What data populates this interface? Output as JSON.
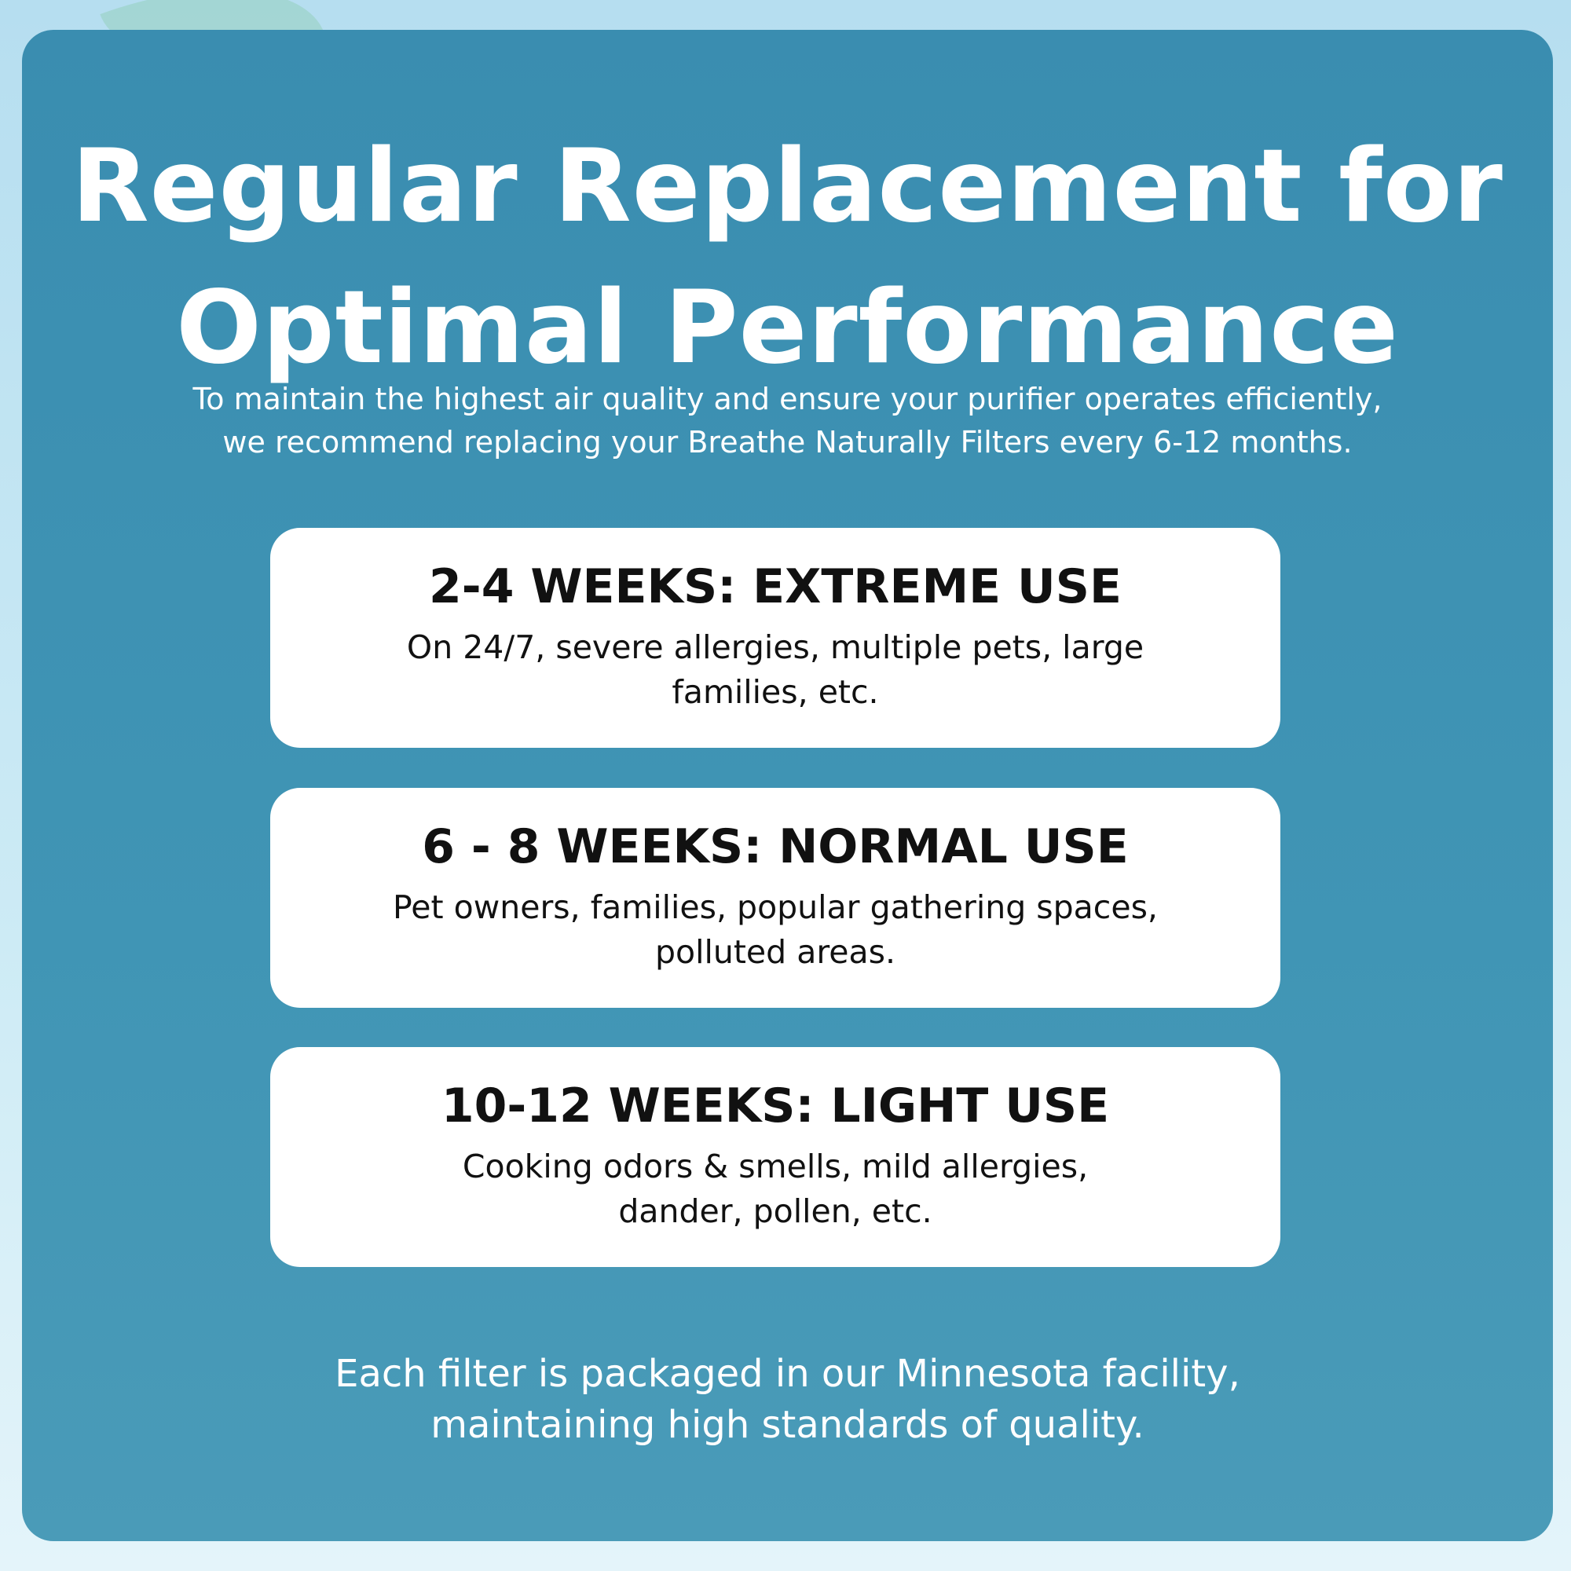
{
  "header": {
    "title": [
      "Regular Replacement for",
      "Optimal Performance"
    ],
    "subtitle": [
      "To maintain the highest air quality and ensure your purifier operates efficiently,",
      "we recommend replacing your Breathe Naturally Filters every 6-12 months."
    ]
  },
  "cards": [
    {
      "heading": "2-4 WEEKS: EXTREME USE",
      "lines": [
        "On 24/7, severe allergies, multiple pets, large",
        "families, etc."
      ]
    },
    {
      "heading": "6 - 8 WEEKS: NORMAL USE",
      "lines": [
        "Pet owners, families, popular gathering spaces,",
        "polluted areas."
      ]
    },
    {
      "heading": "10-12 WEEKS: LIGHT USE",
      "lines": [
        "Cooking odors & smells, mild allergies,",
        "dander, pollen, etc."
      ]
    }
  ],
  "footer": [
    "Each filter is packaged in our Minnesota facility,",
    "maintaining high standards of quality."
  ]
}
